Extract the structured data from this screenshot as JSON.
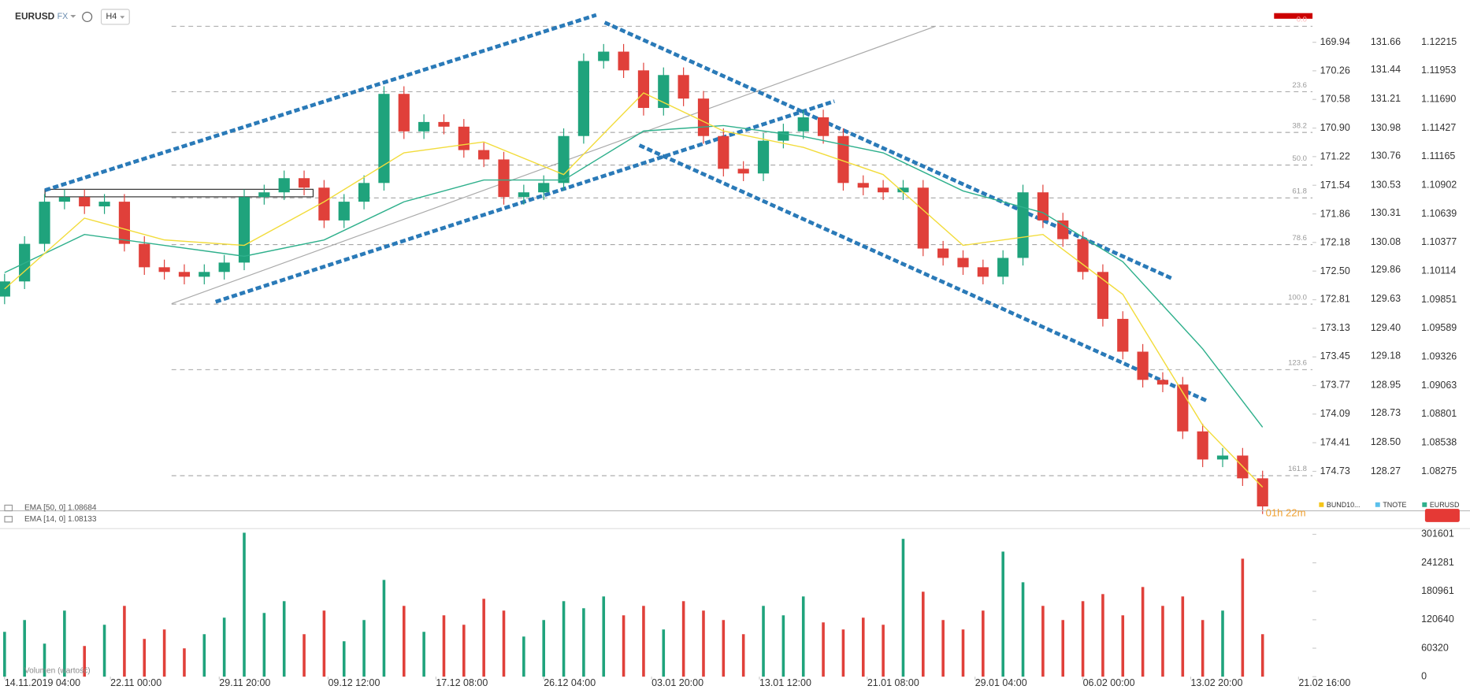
{
  "header": {
    "symbol": "EURUSD",
    "market": "FX",
    "interval": "H4"
  },
  "chart_data": [
    {
      "type": "candlestick",
      "series": [
        {
          "name": "EURUSD",
          "up_color": "#1fa37c",
          "down_color": "#e0403a",
          "open": [
            1.0988,
            1.10019,
            1.10364,
            1.10751,
            1.10794,
            1.10708,
            1.10751,
            1.10364,
            1.10149,
            1.10106,
            1.10062,
            1.10106,
            1.10192,
            1.10794,
            1.10837,
            1.10967,
            1.1088,
            1.10579,
            1.10751,
            1.10923,
            1.11741,
            1.11397,
            1.11483,
            1.1144,
            1.11225,
            1.11139,
            1.10794,
            1.10837,
            1.10923,
            1.11354,
            1.12043,
            1.12129,
            1.11957,
            1.11612,
            1.11914,
            1.11698,
            1.11354,
            1.11053,
            1.1101,
            1.11311,
            1.11397,
            1.11526,
            1.11354,
            1.10923,
            1.1088,
            1.10837,
            1.1088,
            1.10321,
            1.10235,
            1.10149,
            1.10062,
            1.10235,
            1.10837,
            1.10579,
            1.10407,
            1.10106,
            1.09675,
            1.09374,
            1.09115,
            1.09072,
            1.08642,
            1.08384,
            1.0842,
            1.08211
          ],
          "high": [
            1.10089,
            1.10434,
            1.10821,
            1.10864,
            1.10864,
            1.10821,
            1.10821,
            1.10434,
            1.10219,
            1.10176,
            1.10176,
            1.10262,
            1.10864,
            1.10907,
            1.11037,
            1.11037,
            1.1095,
            1.10821,
            1.10993,
            1.11811,
            1.11811,
            1.11553,
            1.11553,
            1.1151,
            1.11295,
            1.11209,
            1.10907,
            1.10993,
            1.11424,
            1.12113,
            1.12199,
            1.12199,
            1.12027,
            1.11984,
            1.11984,
            1.11768,
            1.11424,
            1.11123,
            1.11381,
            1.11467,
            1.11596,
            1.11596,
            1.11424,
            1.10993,
            1.1095,
            1.1095,
            1.1095,
            1.10391,
            1.10305,
            1.10219,
            1.10305,
            1.10907,
            1.10907,
            1.10649,
            1.10477,
            1.10176,
            1.09745,
            1.09444,
            1.09185,
            1.09142,
            1.08712,
            1.0849,
            1.0849,
            1.08281
          ],
          "low": [
            1.0981,
            1.09949,
            1.10294,
            1.10681,
            1.10638,
            1.10638,
            1.10294,
            1.10079,
            1.10036,
            1.09992,
            1.09992,
            1.10036,
            1.10122,
            1.10724,
            1.10767,
            1.1081,
            1.10509,
            1.10509,
            1.10681,
            1.10853,
            1.11327,
            1.11327,
            1.1137,
            1.11155,
            1.11069,
            1.10724,
            1.10724,
            1.10767,
            1.10853,
            1.11284,
            1.11973,
            1.11887,
            1.11542,
            1.11542,
            1.11628,
            1.11284,
            1.10983,
            1.1094,
            1.1094,
            1.11241,
            1.11327,
            1.11284,
            1.10853,
            1.1081,
            1.10767,
            1.10767,
            1.10251,
            1.10165,
            1.10079,
            1.09992,
            1.09992,
            1.10165,
            1.10509,
            1.10337,
            1.10036,
            1.09605,
            1.09304,
            1.09045,
            1.09002,
            1.08572,
            1.08314,
            1.08314,
            1.08141,
            1.07883
          ],
          "close": [
            1.10019,
            1.10364,
            1.10751,
            1.10794,
            1.10708,
            1.10751,
            1.10364,
            1.10149,
            1.10106,
            1.10062,
            1.10106,
            1.10192,
            1.10794,
            1.10837,
            1.10967,
            1.1088,
            1.10579,
            1.10751,
            1.10923,
            1.11741,
            1.11397,
            1.11483,
            1.1144,
            1.11225,
            1.11139,
            1.10794,
            1.10837,
            1.10923,
            1.11354,
            1.12043,
            1.12129,
            1.11957,
            1.11612,
            1.11914,
            1.11698,
            1.11354,
            1.11053,
            1.1101,
            1.11311,
            1.11397,
            1.11526,
            1.11354,
            1.10923,
            1.1088,
            1.10837,
            1.1088,
            1.10321,
            1.10235,
            1.10149,
            1.10062,
            1.10235,
            1.10837,
            1.10579,
            1.10407,
            1.10106,
            1.09675,
            1.09374,
            1.09115,
            1.09072,
            1.08642,
            1.08384,
            1.0842,
            1.08211,
            1.07953
          ]
        }
      ],
      "lines": [
        {
          "name": "EMA [50, 0] 1.08684",
          "color": "#2fb08c",
          "x": [
            0,
            4,
            8,
            12,
            16,
            20,
            24,
            28,
            32,
            36,
            40,
            44,
            48,
            52,
            56,
            60,
            63
          ],
          "values": [
            1.101,
            1.1045,
            1.1035,
            1.1025,
            1.104,
            1.1075,
            1.1095,
            1.1095,
            1.114,
            1.1145,
            1.1135,
            1.112,
            1.1085,
            1.1065,
            1.102,
            1.094,
            1.0868
          ]
        },
        {
          "name": "EMA [14, 0] 1.08133",
          "color": "#f2dc3c",
          "x": [
            0,
            4,
            8,
            12,
            16,
            20,
            24,
            28,
            32,
            36,
            40,
            44,
            48,
            52,
            56,
            60,
            63
          ],
          "values": [
            1.0995,
            1.106,
            1.104,
            1.1035,
            1.1075,
            1.112,
            1.113,
            1.11,
            1.1175,
            1.114,
            1.1125,
            1.11,
            1.1035,
            1.1045,
            1.099,
            1.087,
            1.0813
          ]
        }
      ],
      "xlim": [
        -0.23,
        65.5
      ],
      "xticks": [
        {
          "value": 0,
          "label": "14.11.2019  04:00"
        },
        {
          "value": 5.3,
          "label": "22.11  00:00"
        },
        {
          "value": 10.75,
          "label": "29.11  20:00"
        },
        {
          "value": 16.2,
          "label": "09.12  12:00"
        },
        {
          "value": 21.6,
          "label": "17.12  08:00"
        },
        {
          "value": 27,
          "label": "26.12  04:00"
        },
        {
          "value": 32.4,
          "label": "03.01  20:00"
        },
        {
          "value": 37.8,
          "label": "13.01  12:00"
        },
        {
          "value": 43.2,
          "label": "21.01  08:00"
        },
        {
          "value": 48.6,
          "label": "29.01  04:00"
        },
        {
          "value": 54,
          "label": "06.02  00:00"
        },
        {
          "value": 59.4,
          "label": "13.02  20:00"
        },
        {
          "value": 64.8,
          "label": "21.02  16:00"
        }
      ],
      "ylim": [
        1.07913,
        1.12517
      ],
      "yticks": [
        1.12215,
        1.11953,
        {
          "value": 1.1169,
          "label": "1.11690"
        },
        1.11427,
        1.11165,
        1.10902,
        1.10639,
        1.10377,
        1.10114,
        1.09851,
        1.09589,
        1.09326,
        1.09063,
        1.08801,
        1.08538,
        1.08275
      ],
      "y2lim": [
        175.17,
        169.573
      ],
      "y2ticks": [
        169.94,
        170.26,
        170.58,
        {
          "value": 170.9,
          "label": "170.90"
        },
        171.22,
        171.54,
        171.86,
        172.18,
        {
          "value": 172.5,
          "label": "172.50"
        },
        172.81,
        173.13,
        173.45,
        173.77,
        174.09,
        174.41,
        174.73
      ],
      "y3lim": [
        127.959,
        131.919
      ],
      "y3ticks": [
        131.66,
        131.44,
        131.21,
        130.98,
        130.76,
        130.53,
        130.31,
        130.08,
        129.86,
        129.63,
        {
          "value": 129.4,
          "label": "129.40"
        },
        129.18,
        128.95,
        128.73,
        {
          "value": 128.5,
          "label": "128.50"
        },
        128.27
      ],
      "axis_legend": [
        {
          "name": "BUND10...",
          "color": "#f5c518"
        },
        {
          "name": "TNOTE",
          "color": "#5bc0eb"
        },
        {
          "name": "EURUSD",
          "color": "#2fb08c"
        }
      ],
      "fib_levels": [
        {
          "value": 1.12362,
          "label": "0.0"
        },
        {
          "value": 1.1176,
          "label": "23.6"
        },
        {
          "value": 1.11387,
          "label": "38.2"
        },
        {
          "value": 1.11087,
          "label": "50.0"
        },
        {
          "value": 1.10786,
          "label": "61.8"
        },
        {
          "value": 1.10357,
          "label": "78.6"
        },
        {
          "value": 1.09811,
          "label": "100.0"
        },
        {
          "value": 1.09209,
          "label": "123.6"
        },
        {
          "value": 1.08235,
          "label": "161.8"
        }
      ],
      "countdown": "01h 22m"
    },
    {
      "type": "volume",
      "title": "Volumen (wartość)",
      "values": [
        95000,
        120000,
        70000,
        140000,
        65000,
        110000,
        150000,
        80000,
        100000,
        60000,
        90000,
        125000,
        305000,
        135000,
        160000,
        90000,
        140000,
        75000,
        120000,
        205000,
        150000,
        95000,
        130000,
        110000,
        165000,
        140000,
        85000,
        120000,
        160000,
        145000,
        170000,
        130000,
        150000,
        100000,
        160000,
        140000,
        120000,
        90000,
        150000,
        130000,
        170000,
        115000,
        100000,
        125000,
        110000,
        292000,
        180000,
        120000,
        100000,
        140000,
        265000,
        200000,
        150000,
        120000,
        160000,
        175000,
        130000,
        190000,
        150000,
        170000,
        120000,
        140000,
        250000,
        90000
      ],
      "ylim": [
        0,
        311800
      ],
      "yticks": [
        0,
        60320,
        120640,
        180961,
        241281,
        301601
      ]
    }
  ]
}
